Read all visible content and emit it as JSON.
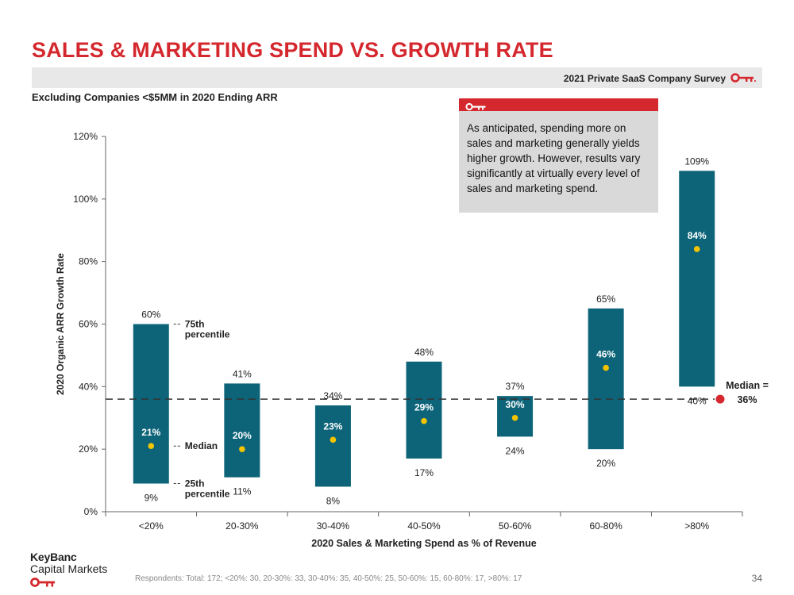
{
  "title": "SALES & MARKETING SPEND VS. GROWTH RATE",
  "survey_label": "2021 Private SaaS Company Survey",
  "subtitle": "Excluding Companies <$5MM in 2020 Ending ARR",
  "callout": "As anticipated, spending more on sales and marketing generally yields higher growth. However, results vary significantly at virtually every level of sales and marketing spend.",
  "footnote": "Respondents: Total: 172; <20%: 30, 20-30%: 33, 30-40%: 35, 40-50%: 25, 50-60%: 15, 60-80%: 17, >80%: 17",
  "page_number": "34",
  "logo": {
    "line1": "KeyBanc",
    "line2": "Capital Markets"
  },
  "colors": {
    "accent": "#d4282e",
    "bar": "#0d6479",
    "median_dot": "#f5c400",
    "overall_median_dot": "#d4282e",
    "callout_bg": "#d9d9d9",
    "band_bg": "#e8e8e8"
  },
  "chart_data": {
    "type": "bar",
    "subtype": "floating-range",
    "xlabel": "2020 Sales & Marketing Spend as % of Revenue",
    "ylabel": "2020 Organic ARR Growth Rate",
    "ylim": [
      0,
      120
    ],
    "yticks": [
      "0%",
      "20%",
      "40%",
      "60%",
      "80%",
      "100%",
      "120%"
    ],
    "categories": [
      "<20%",
      "20-30%",
      "30-40%",
      "40-50%",
      "50-60%",
      "60-80%",
      ">80%"
    ],
    "p25": [
      9,
      11,
      8,
      17,
      24,
      20,
      40
    ],
    "median": [
      21,
      20,
      23,
      29,
      30,
      46,
      84
    ],
    "p75": [
      60,
      41,
      34,
      48,
      37,
      65,
      109
    ],
    "p25_labels": [
      "9%",
      "11%",
      "8%",
      "17%",
      "24%",
      "20%",
      "40%"
    ],
    "median_labels": [
      "21%",
      "20%",
      "23%",
      "29%",
      "30%",
      "46%",
      "84%"
    ],
    "p75_labels": [
      "60%",
      "41%",
      "34%",
      "48%",
      "37%",
      "65%",
      "109%"
    ],
    "overall_median": 36,
    "overall_median_label": [
      "Median =",
      "36%"
    ],
    "annotations": {
      "p75": [
        "75th",
        "percentile"
      ],
      "median": "Median",
      "p25": [
        "25th",
        "percentile"
      ]
    },
    "grid": false
  }
}
